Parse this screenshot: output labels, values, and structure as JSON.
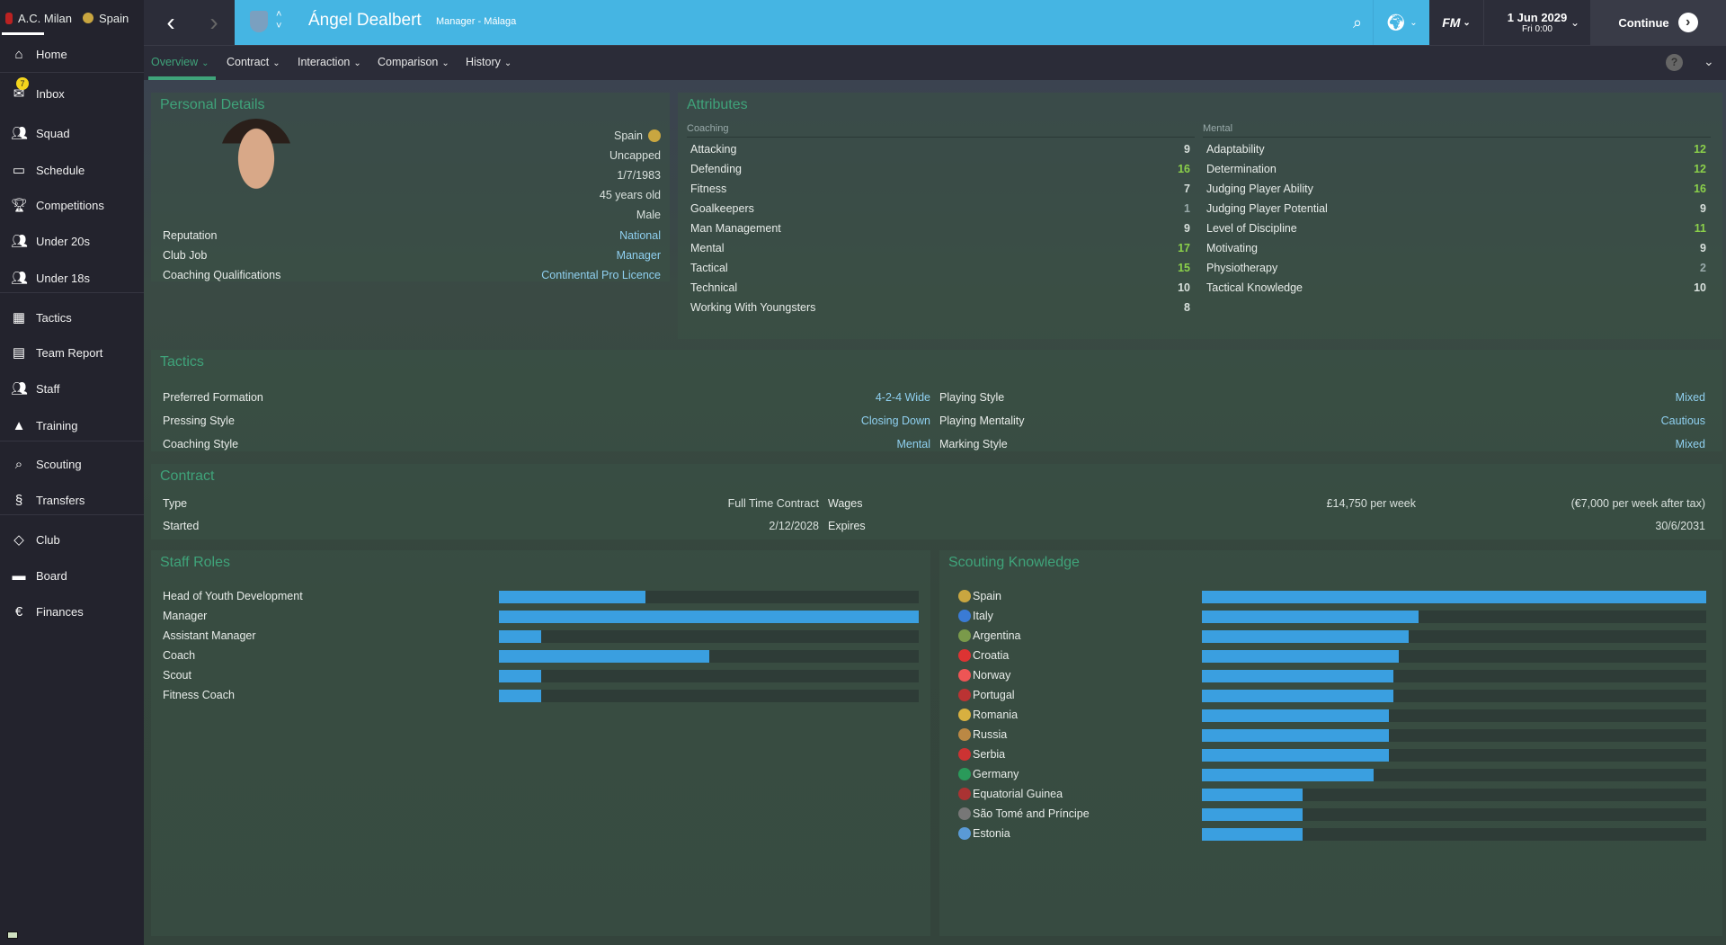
{
  "sidebar": {
    "club": "A.C. Milan",
    "nation": "Spain",
    "inbox_count": "7",
    "items": [
      {
        "label": "Home",
        "icon": "home-icon"
      },
      {
        "label": "Inbox",
        "icon": "inbox-icon"
      },
      {
        "label": "Squad",
        "icon": "squad-icon"
      },
      {
        "label": "Schedule",
        "icon": "calendar-icon"
      },
      {
        "label": "Competitions",
        "icon": "trophy-icon"
      },
      {
        "label": "Under 20s",
        "icon": "u20-icon"
      },
      {
        "label": "Under 18s",
        "icon": "u18-icon"
      },
      {
        "label": "Tactics",
        "icon": "tactics-icon"
      },
      {
        "label": "Team Report",
        "icon": "report-icon"
      },
      {
        "label": "Staff",
        "icon": "staff-icon"
      },
      {
        "label": "Training",
        "icon": "training-icon"
      },
      {
        "label": "Scouting",
        "icon": "search-icon"
      },
      {
        "label": "Transfers",
        "icon": "transfers-icon"
      },
      {
        "label": "Club",
        "icon": "shield-icon"
      },
      {
        "label": "Board",
        "icon": "board-icon"
      },
      {
        "label": "Finances",
        "icon": "currency-icon"
      }
    ]
  },
  "header": {
    "name": "Ángel Dealbert",
    "subtitle": "Manager - Málaga",
    "fm": "FM",
    "date": "1 Jun 2029",
    "time": "Fri 0:00",
    "continue": "Continue"
  },
  "tabs": [
    "Overview",
    "Contract",
    "Interaction",
    "Comparison",
    "History"
  ],
  "personal": {
    "title": "Personal Details",
    "values": [
      "Spain",
      "Uncapped",
      "1/7/1983",
      "45 years old",
      "Male"
    ],
    "rows": [
      {
        "label": "Reputation",
        "value": "National"
      },
      {
        "label": "Club Job",
        "value": "Manager"
      },
      {
        "label": "Coaching Qualifications",
        "value": "Continental Pro Licence"
      }
    ]
  },
  "attributes": {
    "title": "Attributes",
    "coaching_label": "Coaching",
    "mental_label": "Mental",
    "coaching": [
      {
        "label": "Attacking",
        "value": 9
      },
      {
        "label": "Defending",
        "value": 16
      },
      {
        "label": "Fitness",
        "value": 7
      },
      {
        "label": "Goalkeepers",
        "value": 1
      },
      {
        "label": "Man Management",
        "value": 9
      },
      {
        "label": "Mental",
        "value": 17
      },
      {
        "label": "Tactical",
        "value": 15
      },
      {
        "label": "Technical",
        "value": 10
      },
      {
        "label": "Working With Youngsters",
        "value": 8
      }
    ],
    "mental": [
      {
        "label": "Adaptability",
        "value": 12
      },
      {
        "label": "Determination",
        "value": 12
      },
      {
        "label": "Judging Player Ability",
        "value": 16
      },
      {
        "label": "Judging Player Potential",
        "value": 9
      },
      {
        "label": "Level of Discipline",
        "value": 11
      },
      {
        "label": "Motivating",
        "value": 9
      },
      {
        "label": "Physiotherapy",
        "value": 2
      },
      {
        "label": "Tactical Knowledge",
        "value": 10
      }
    ]
  },
  "tactics": {
    "title": "Tactics",
    "left": [
      {
        "label": "Preferred Formation",
        "value": "4-2-4 Wide"
      },
      {
        "label": "Pressing Style",
        "value": "Closing Down"
      },
      {
        "label": "Coaching Style",
        "value": "Mental"
      }
    ],
    "right": [
      {
        "label": "Playing Style",
        "value": "Mixed"
      },
      {
        "label": "Playing Mentality",
        "value": "Cautious"
      },
      {
        "label": "Marking Style",
        "value": "Mixed"
      }
    ]
  },
  "contract": {
    "title": "Contract",
    "type_label": "Type",
    "type": "Full Time Contract",
    "wages_label": "Wages",
    "wages": "£14,750 per week",
    "wages_after_tax": "(€7,000 per week after tax)",
    "started_label": "Started",
    "started": "2/12/2028",
    "expires_label": "Expires",
    "expires": "30/6/2031"
  },
  "staff_roles": {
    "title": "Staff Roles",
    "items": [
      {
        "label": "Head of Youth Development",
        "level": 0.35
      },
      {
        "label": "Manager",
        "level": 1.0
      },
      {
        "label": "Assistant Manager",
        "level": 0.1
      },
      {
        "label": "Coach",
        "level": 0.5
      },
      {
        "label": "Scout",
        "level": 0.1
      },
      {
        "label": "Fitness Coach",
        "level": 0.1
      }
    ]
  },
  "scouting": {
    "title": "Scouting Knowledge",
    "items": [
      {
        "label": "Spain",
        "level": 1.0
      },
      {
        "label": "Italy",
        "level": 0.43
      },
      {
        "label": "Argentina",
        "level": 0.41
      },
      {
        "label": "Croatia",
        "level": 0.39
      },
      {
        "label": "Norway",
        "level": 0.38
      },
      {
        "label": "Portugal",
        "level": 0.38
      },
      {
        "label": "Romania",
        "level": 0.37
      },
      {
        "label": "Russia",
        "level": 0.37
      },
      {
        "label": "Serbia",
        "level": 0.37
      },
      {
        "label": "Germany",
        "level": 0.34
      },
      {
        "label": "Equatorial Guinea",
        "level": 0.2
      },
      {
        "label": "São Tomé and Príncipe",
        "level": 0.2
      },
      {
        "label": "Estonia",
        "level": 0.2
      }
    ]
  },
  "colors": {
    "accent": "#3fa37a",
    "header_blue": "#45b5e3",
    "bar": "#3a9fe0",
    "high_attr": "#8bd04a"
  }
}
